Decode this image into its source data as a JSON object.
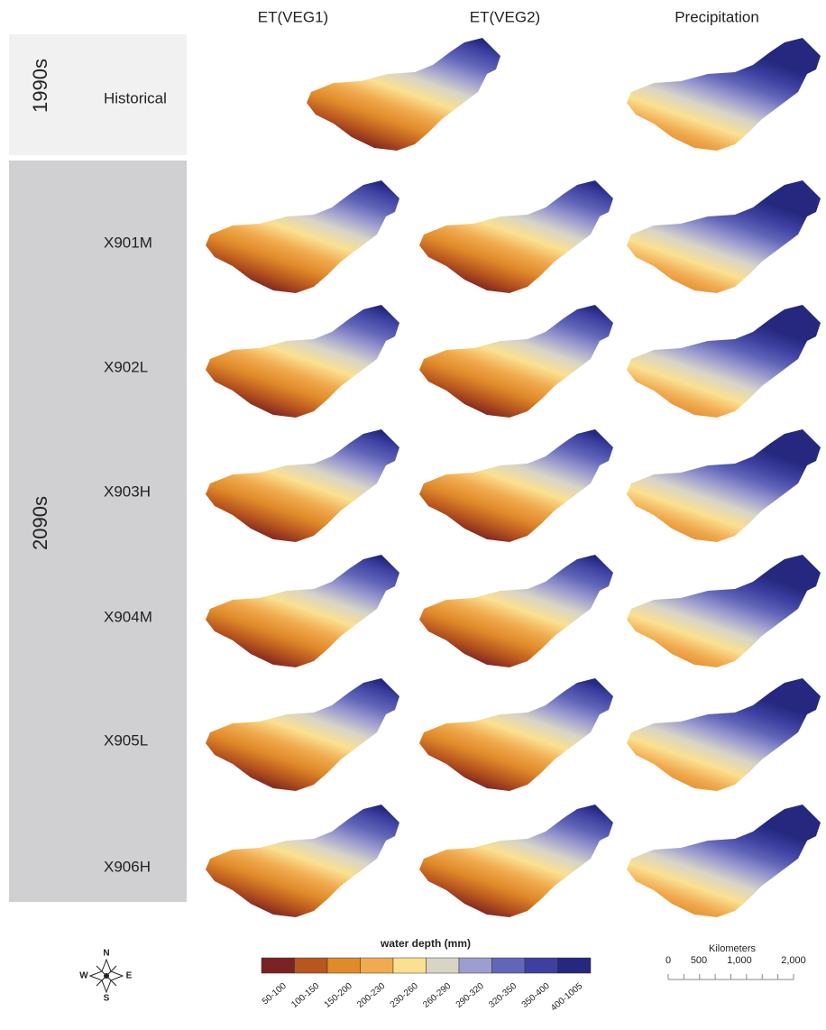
{
  "columns": [
    "ET(VEG1)",
    "ET(VEG2)",
    "Precipitation"
  ],
  "periods": [
    "1990s",
    "2090s"
  ],
  "rows": [
    "Historical",
    "X901M",
    "X902L",
    "X903H",
    "X904M",
    "X905L",
    "X906H"
  ],
  "legend": {
    "title": "water depth (mm)",
    "classes": [
      {
        "label": "50-100",
        "color": "#7b2222"
      },
      {
        "label": "100-150",
        "color": "#b8561e"
      },
      {
        "label": "150-200",
        "color": "#e08a2a"
      },
      {
        "label": "200-230",
        "color": "#f1aa4f"
      },
      {
        "label": "230-260",
        "color": "#fbe090"
      },
      {
        "label": "260-290",
        "color": "#d8d5c6"
      },
      {
        "label": "290-320",
        "color": "#9e9dd0"
      },
      {
        "label": "320-350",
        "color": "#6266b8"
      },
      {
        "label": "350-400",
        "color": "#3d40a0"
      },
      {
        "label": "400-1005",
        "color": "#25287e"
      }
    ]
  },
  "scale_bar": {
    "title": "Kilometers",
    "labels": [
      "0",
      "500",
      "1,000",
      "2,000"
    ]
  },
  "compass": [
    "N",
    "E",
    "S",
    "W"
  ]
}
